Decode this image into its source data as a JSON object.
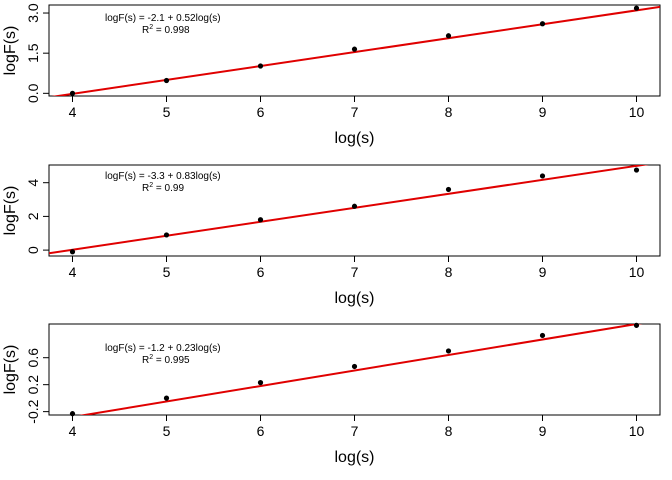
{
  "colors": {
    "fit_line": "#e00000",
    "points": "#000000",
    "frame": "#000000"
  },
  "chart_data": [
    {
      "type": "scatter",
      "xlabel": "log(s)",
      "ylabel": "logF(s)",
      "xlim": [
        3.75,
        10.25
      ],
      "ylim": [
        -0.1,
        3.3
      ],
      "xticks": [
        4,
        5,
        6,
        7,
        8,
        9,
        10
      ],
      "yticks": [
        0.0,
        1.5,
        3.0
      ],
      "ytick_labels": [
        "0.0",
        "1.5",
        "3.0"
      ],
      "x": [
        4,
        5,
        6,
        7,
        8,
        9,
        10
      ],
      "y": [
        0.0,
        0.48,
        1.02,
        1.65,
        2.15,
        2.6,
        3.18
      ],
      "fit": {
        "intercept": -2.1,
        "slope": 0.52
      },
      "equation": "logF(s) = -2.1 + 0.52log(s)",
      "r2_label": "R",
      "r2_sup": "2",
      "r2_value": " =  0.998"
    },
    {
      "type": "scatter",
      "xlabel": "log(s)",
      "ylabel": "logF(s)",
      "xlim": [
        3.75,
        10.25
      ],
      "ylim": [
        -0.35,
        5.05
      ],
      "xticks": [
        4,
        5,
        6,
        7,
        8,
        9,
        10
      ],
      "yticks": [
        0,
        2,
        4
      ],
      "ytick_labels": [
        "0",
        "2",
        "4"
      ],
      "x": [
        4,
        5,
        6,
        7,
        8,
        9,
        10
      ],
      "y": [
        -0.1,
        0.9,
        1.8,
        2.6,
        3.6,
        4.4,
        4.75
      ],
      "fit": {
        "intercept": -3.3,
        "slope": 0.83
      },
      "equation": "logF(s) = -3.3 + 0.83log(s)",
      "r2_label": "R",
      "r2_sup": "2",
      "r2_value": " =  0.99"
    },
    {
      "type": "scatter",
      "xlabel": "log(s)",
      "ylabel": "logF(s)",
      "xlim": [
        3.75,
        10.25
      ],
      "ylim": [
        -0.25,
        1.1
      ],
      "xticks": [
        4,
        5,
        6,
        7,
        8,
        9,
        10
      ],
      "yticks": [
        -0.2,
        0.2,
        0.6
      ],
      "ytick_labels": [
        "-0.2",
        "0.2",
        "0.6"
      ],
      "x": [
        4,
        5,
        6,
        7,
        8,
        9,
        10
      ],
      "y": [
        -0.23,
        0.0,
        0.23,
        0.47,
        0.7,
        0.93,
        1.08
      ],
      "fit": {
        "intercept": -1.2,
        "slope": 0.23
      },
      "equation": "logF(s) = -1.2 + 0.23log(s)",
      "r2_label": "R",
      "r2_sup": "2",
      "r2_value": " =  0.995"
    }
  ]
}
